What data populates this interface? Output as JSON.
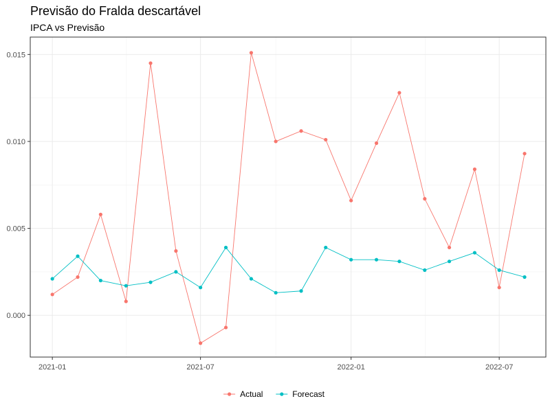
{
  "chart_data": {
    "type": "line",
    "title": "Previsão do Fralda descartável",
    "subtitle": "IPCA vs Previsão",
    "xlabel": "",
    "ylabel": "",
    "x": [
      "2021-01-01",
      "2021-02-01",
      "2021-03-01",
      "2021-04-01",
      "2021-05-01",
      "2021-06-01",
      "2021-07-01",
      "2021-08-01",
      "2021-09-01",
      "2021-10-01",
      "2021-11-01",
      "2021-12-01",
      "2022-01-01",
      "2022-02-01",
      "2022-03-01",
      "2022-04-01",
      "2022-05-01",
      "2022-06-01",
      "2022-07-01",
      "2022-08-01"
    ],
    "series": [
      {
        "name": "Actual",
        "color": "#F8766D",
        "values": [
          0.0012,
          0.0022,
          0.0058,
          0.0008,
          0.0145,
          0.0037,
          -0.0016,
          -0.0007,
          0.0151,
          0.01,
          0.0106,
          0.0101,
          0.0066,
          0.0099,
          0.0128,
          0.0067,
          0.0039,
          0.0084,
          0.0016,
          0.0093
        ]
      },
      {
        "name": "Forecast",
        "color": "#00BFC4",
        "values": [
          0.0021,
          0.0034,
          0.002,
          0.0017,
          0.0019,
          0.0025,
          0.0016,
          0.0039,
          0.0021,
          0.0013,
          0.0014,
          0.0039,
          0.0032,
          0.0032,
          0.0031,
          0.0026,
          0.0031,
          0.0036,
          0.0026,
          0.0022
        ]
      }
    ],
    "x_ticks": [
      {
        "date": "2021-01-01",
        "label": "2021-01"
      },
      {
        "date": "2021-07-01",
        "label": "2021-07"
      },
      {
        "date": "2022-01-01",
        "label": "2022-01"
      },
      {
        "date": "2022-07-01",
        "label": "2022-07"
      }
    ],
    "xlim": [
      "2020-12-05",
      "2022-08-27"
    ],
    "y_ticks": [
      0.0,
      0.005,
      0.01,
      0.015
    ],
    "y_tick_labels": [
      "0.000",
      "0.005",
      "0.010",
      "0.015"
    ],
    "ylim": [
      -0.0024,
      0.016
    ],
    "grid": true,
    "legend_position": "bottom"
  }
}
